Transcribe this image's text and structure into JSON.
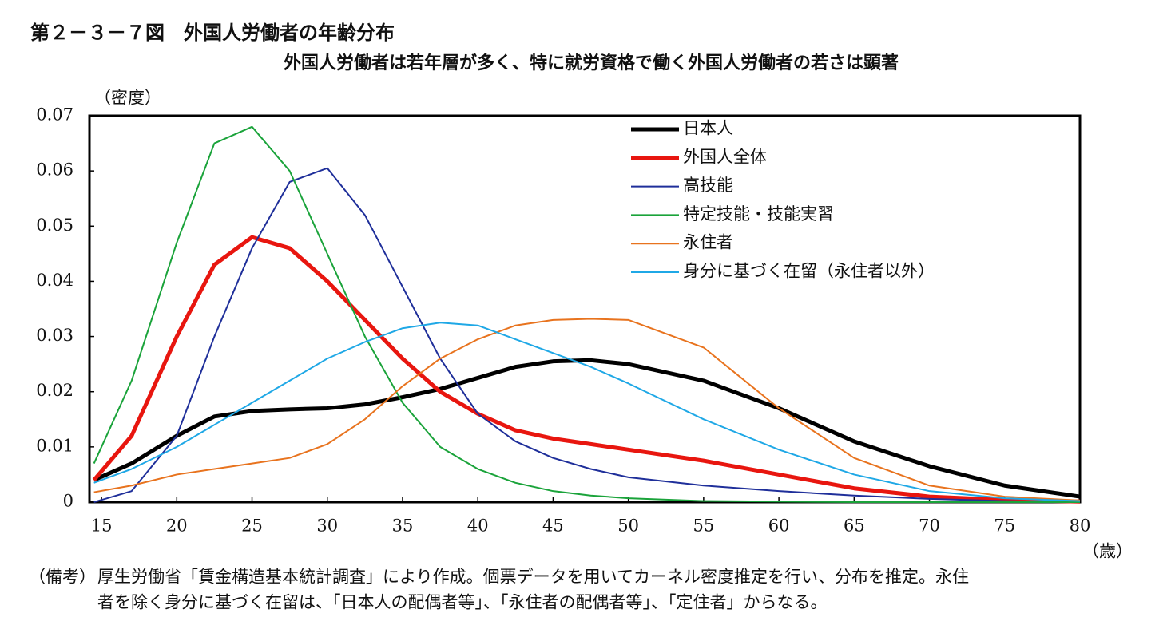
{
  "chart_data": {
    "type": "line",
    "title": "第２－３－７図　外国人労働者の年齢分布",
    "subtitle": "外国人労働者は若年層が多く、特に就労資格で働く外国人労働者の若さは顕著",
    "y_label": "（密度）",
    "x_label": "（歳）",
    "notes": [
      "（備考）",
      "厚生労働省「賃金構造基本統計調査」により作成。個票データを用いてカーネル密度推定を行い、分布を推定。永住",
      "者を除く身分に基づく在留は、「日本人の配偶者等」、「永住者の配偶者等」、「定住者」からなる。"
    ],
    "x": [
      14.5,
      17,
      20,
      22.5,
      25,
      27.5,
      30,
      32.5,
      35,
      37.5,
      40,
      42.5,
      45,
      47.5,
      50,
      55,
      60,
      65,
      70,
      75,
      80
    ],
    "xlim": [
      14.2,
      80
    ],
    "xticks": [
      15,
      20,
      25,
      30,
      35,
      40,
      45,
      50,
      55,
      60,
      65,
      70,
      75,
      80
    ],
    "ylim": [
      0,
      0.07
    ],
    "yticks": [
      0,
      0.01,
      0.02,
      0.03,
      0.04,
      0.05,
      0.06,
      0.07
    ],
    "legend": "top-right",
    "series": [
      {
        "name": "日本人",
        "color": "#000000",
        "values": [
          0.004,
          0.007,
          0.012,
          0.0155,
          0.0165,
          0.0168,
          0.017,
          0.0177,
          0.019,
          0.0205,
          0.0225,
          0.0245,
          0.0255,
          0.0257,
          0.025,
          0.022,
          0.017,
          0.011,
          0.0065,
          0.003,
          0.001
        ]
      },
      {
        "name": "外国人全体",
        "color": "#e8160f",
        "values": [
          0.004,
          0.012,
          0.03,
          0.043,
          0.048,
          0.046,
          0.04,
          0.033,
          0.026,
          0.02,
          0.016,
          0.013,
          0.0115,
          0.0105,
          0.0095,
          0.0075,
          0.005,
          0.0025,
          0.001,
          0.0004,
          0.0001
        ]
      },
      {
        "name": "高技能",
        "color": "#1f2f9a",
        "values": [
          0.0,
          0.002,
          0.012,
          0.03,
          0.046,
          0.058,
          0.0605,
          0.052,
          0.039,
          0.026,
          0.016,
          0.011,
          0.008,
          0.006,
          0.0045,
          0.003,
          0.002,
          0.0012,
          0.0006,
          0.0002,
          0.0
        ]
      },
      {
        "name": "特定技能・技能実習",
        "color": "#1aa33a",
        "values": [
          0.007,
          0.022,
          0.047,
          0.065,
          0.068,
          0.06,
          0.045,
          0.03,
          0.018,
          0.01,
          0.006,
          0.0035,
          0.002,
          0.0012,
          0.0007,
          0.0002,
          0.0001,
          0,
          0,
          0,
          0
        ]
      },
      {
        "name": "永住者",
        "color": "#e8731e",
        "values": [
          0.0018,
          0.003,
          0.005,
          0.006,
          0.007,
          0.008,
          0.0105,
          0.015,
          0.021,
          0.026,
          0.0295,
          0.032,
          0.033,
          0.0332,
          0.033,
          0.028,
          0.017,
          0.008,
          0.003,
          0.001,
          0.0003
        ]
      },
      {
        "name": "身分に基づく在留（永住者以外）",
        "color": "#1fa8e6",
        "values": [
          0.0035,
          0.006,
          0.01,
          0.014,
          0.018,
          0.022,
          0.026,
          0.029,
          0.0315,
          0.0325,
          0.032,
          0.0295,
          0.027,
          0.0245,
          0.0215,
          0.015,
          0.0095,
          0.005,
          0.002,
          0.0007,
          0.0002
        ]
      }
    ]
  }
}
